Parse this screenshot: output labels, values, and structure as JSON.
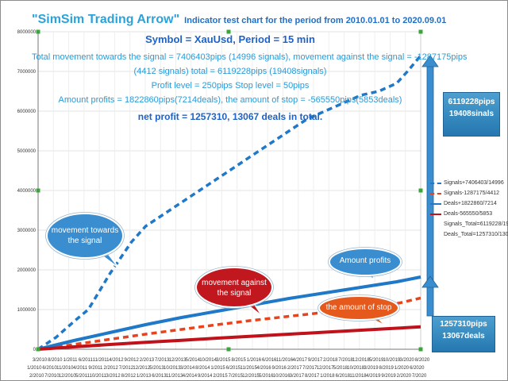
{
  "header": {
    "title": "\"SimSim Trading Arrow\"",
    "subtitle": "Indicator test chart for the period from 2010.01.01 to 2020.09.01",
    "symbol_line": "Symbol = XauUsd, Period = 15 min",
    "info_lines": [
      "Total movement towards the signal = 7406403pips (14996 signals), movement against the signal = -1287175pips",
      "(4412 signals) total = 6119228pips (19408signals)",
      "Profit level = 250pips Stop level = 50pips",
      "Amount profits = 1822860pips(7214deals), the amount of stop = -565550pips(5853deals)"
    ],
    "net_line": "net profit = 1257310, 13067 deals in total."
  },
  "annotations": {
    "towards": "movement towards the signal",
    "against": "movement against the signal",
    "profits": "Amount profits",
    "stop": "the amount of stop",
    "box_top": [
      "6119228pips",
      "19408sinals"
    ],
    "box_bottom": [
      "1257310pips",
      "13067deals"
    ]
  },
  "legend": [
    {
      "label": "Signals+7406403/14996",
      "color": "#1f78c8",
      "style": "dashed"
    },
    {
      "label": "Signals-1287175/4412",
      "color": "#e8431c",
      "style": "dashed"
    },
    {
      "label": "Deals+1822860/7214",
      "color": "#1f78c8",
      "style": "solid"
    },
    {
      "label": "Deals-565550/5853",
      "color": "#c0121b",
      "style": "solid"
    },
    {
      "label": "Signals_Total=6119228/19408",
      "color": "",
      "style": "none"
    },
    {
      "label": "Deals_Total=1257310/13067",
      "color": "",
      "style": "none"
    }
  ],
  "chart_data": {
    "type": "line",
    "ylim": [
      0,
      8000000
    ],
    "y_ticks": [
      0,
      1000000,
      2000000,
      3000000,
      4000000,
      5000000,
      6000000,
      7000000,
      8000000
    ],
    "x_tick_labels_top": [
      "3/2010",
      "8/2010",
      "1/2011",
      "6/2011",
      "11/2011",
      "4/2012",
      "9/2012",
      "2/2013",
      "7/2013",
      "12/2013",
      "5/2014",
      "10/2014",
      "3/2015",
      "8/2015",
      "1/2016",
      "6/2016",
      "11/2016",
      "4/2017",
      "9/2017",
      "2/2018",
      "7/2018",
      "12/2018",
      "5/2019",
      "10/2019",
      "3/2020",
      "8/2020"
    ],
    "x_tick_labels_mid": [
      "1/2010",
      "6/2010",
      "11/2010",
      "4/2011",
      "9/2011",
      "2/2012",
      "7/2012",
      "12/2012",
      "5/2013",
      "10/2013",
      "3/2014",
      "8/2014",
      "1/2015",
      "6/2015",
      "11/2015",
      "4/2016",
      "9/2016",
      "2/2017",
      "7/2017",
      "12/2017",
      "5/2018",
      "10/2018",
      "3/2019",
      "8/2019",
      "1/2020",
      "6/2020"
    ],
    "x_tick_labels_bottom": [
      "2/2010",
      "7/2010",
      "12/2010",
      "5/2011",
      "10/2011",
      "3/2012",
      "8/2012",
      "1/2013",
      "6/2013",
      "11/2013",
      "4/2014",
      "9/2014",
      "2/2015",
      "7/2015",
      "12/2015",
      "5/2016",
      "10/2016",
      "3/2017",
      "8/2017",
      "1/2018",
      "6/2018",
      "11/2018",
      "4/2019",
      "9/2019",
      "2/2020",
      "7/2020"
    ],
    "x_range": [
      2010.0,
      2020.67
    ],
    "series": [
      {
        "name": "Signals+7406403/14996",
        "color": "#1f78c8",
        "style": "dashed",
        "width": 3.5,
        "x": [
          2010.0,
          2010.5,
          2011.0,
          2011.4,
          2011.6,
          2011.8,
          2012.0,
          2012.3,
          2012.6,
          2013.0,
          2013.5,
          2014.0,
          2014.5,
          2015.0,
          2015.5,
          2016.0,
          2016.5,
          2017.0,
          2017.5,
          2018.0,
          2018.5,
          2019.0,
          2019.5,
          2020.0,
          2020.3,
          2020.67
        ],
        "y": [
          0,
          300000,
          700000,
          1000000,
          1300000,
          1600000,
          1900000,
          2300000,
          2700000,
          3100000,
          3400000,
          3700000,
          4000000,
          4300000,
          4600000,
          4900000,
          5200000,
          5500000,
          5800000,
          6000000,
          6200000,
          6400000,
          6500000,
          6700000,
          7000000,
          7400000
        ]
      },
      {
        "name": "Signals-1287175/4412",
        "color": "#e8431c",
        "style": "dashed",
        "width": 3.5,
        "x": [
          2010.0,
          2011.0,
          2012.0,
          2013.0,
          2014.0,
          2015.0,
          2016.0,
          2017.0,
          2018.0,
          2019.0,
          2019.5,
          2020.0,
          2020.67
        ],
        "y": [
          0,
          120000,
          250000,
          380000,
          500000,
          620000,
          730000,
          830000,
          930000,
          1030000,
          1080000,
          1150000,
          1290000
        ]
      },
      {
        "name": "Deals+1822860/7214",
        "color": "#1f78c8",
        "style": "solid",
        "width": 4,
        "x": [
          2010.0,
          2011.0,
          2012.0,
          2013.0,
          2014.0,
          2015.0,
          2016.0,
          2017.0,
          2018.0,
          2019.0,
          2020.0,
          2020.67
        ],
        "y": [
          0,
          220000,
          420000,
          620000,
          800000,
          960000,
          1120000,
          1280000,
          1420000,
          1560000,
          1700000,
          1820000
        ]
      },
      {
        "name": "Deals-565550/5853",
        "color": "#c0121b",
        "style": "solid",
        "width": 4,
        "x": [
          2010.0,
          2011.0,
          2012.0,
          2013.0,
          2014.0,
          2015.0,
          2016.0,
          2017.0,
          2018.0,
          2019.0,
          2020.0,
          2020.67
        ],
        "y": [
          0,
          60000,
          120000,
          175000,
          225000,
          280000,
          330000,
          380000,
          430000,
          480000,
          530000,
          565000
        ]
      }
    ]
  }
}
